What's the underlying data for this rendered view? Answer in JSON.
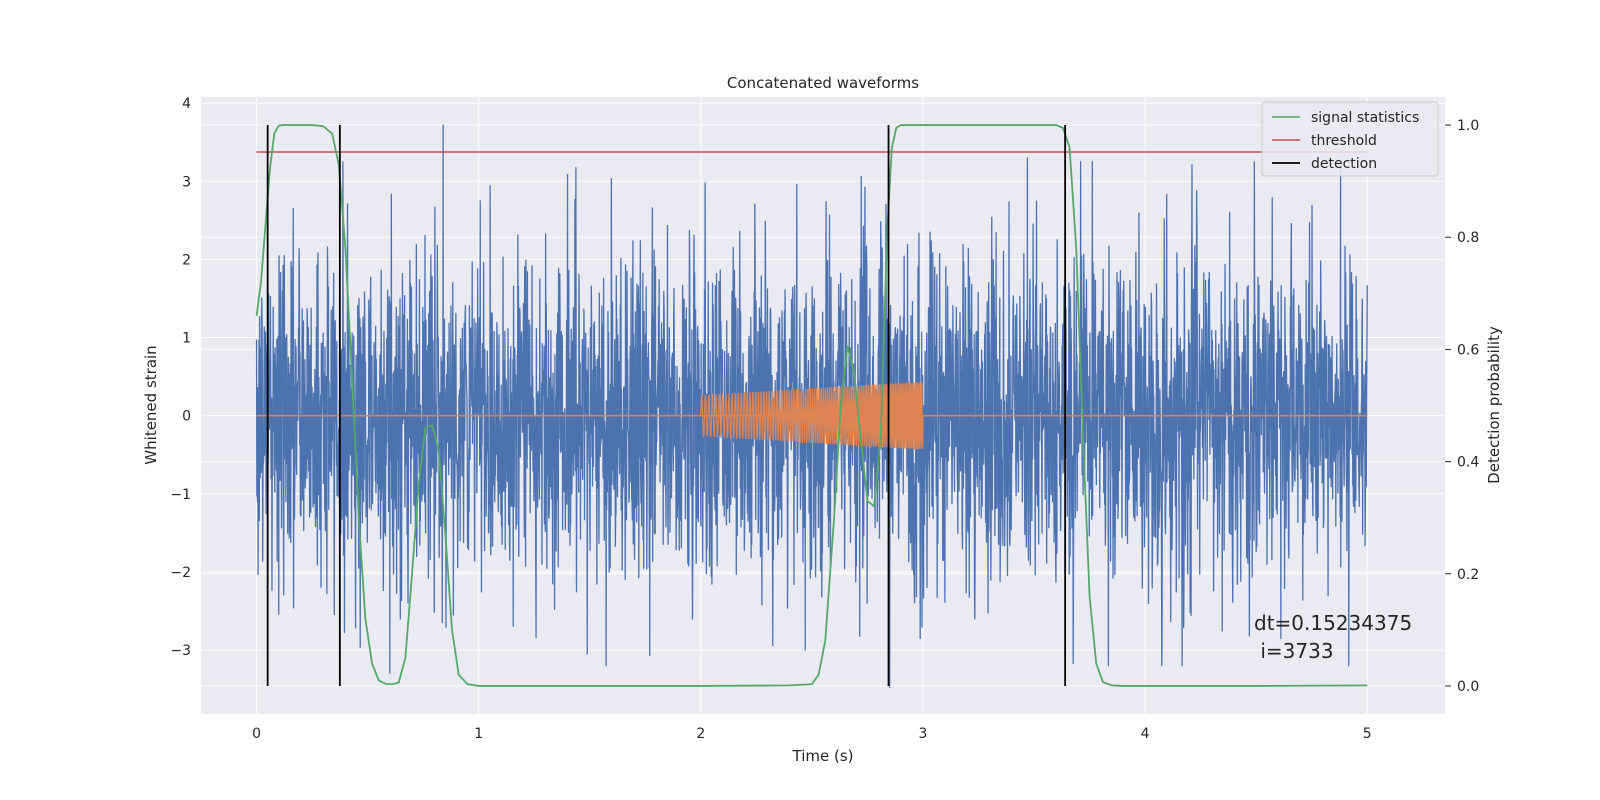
{
  "chart_data": {
    "type": "line",
    "title": "Concatenated waveforms",
    "xlabel": "Time (s)",
    "ylabel": "Whitened strain",
    "ylabel_right": "Detection probability",
    "xlim": [
      -0.25,
      5.35
    ],
    "ylim": [
      -3.82,
      4.08
    ],
    "ylim_right": [
      -0.05,
      1.05
    ],
    "xticks": [
      0,
      1,
      2,
      3,
      4,
      5
    ],
    "yticks": [
      -3,
      -2,
      -1,
      0,
      1,
      2,
      3,
      4
    ],
    "yticks_right": [
      0.0,
      0.2,
      0.4,
      0.6,
      0.8,
      1.0
    ],
    "yticks_right_labels": [
      "0.0",
      "0.2",
      "0.4",
      "0.6",
      "0.8",
      "1.0"
    ],
    "grid": true,
    "legend_position": "top-right",
    "colors": {
      "strain": "#4c72b0",
      "injection": "#dd8452",
      "signal": "#55a868",
      "threshold": "#c44e52",
      "detection": "#000000",
      "background": "#eaeaf2",
      "grid": "#ffffff"
    },
    "series": [
      {
        "name": "",
        "axis": "left",
        "kind": "noise",
        "x_range": [
          0,
          5
        ],
        "peak_positive": [
          [
            0.84,
            3.72
          ],
          [
            4.88,
            3.2
          ],
          [
            3.47,
            3.3
          ]
        ],
        "peak_negative": [
          [
            2.85,
            -3.48
          ],
          [
            0.6,
            -3.3
          ],
          [
            1.77,
            -3.07
          ],
          [
            2.47,
            -3.0
          ]
        ]
      },
      {
        "name": "",
        "axis": "left",
        "kind": "chirp",
        "baseline_x": [
          0,
          5
        ],
        "baseline_y": 0,
        "chirp_x_range": [
          2.0,
          3.0
        ],
        "chirp_amplitude_start": 0.26,
        "chirp_amplitude_end": 0.44
      },
      {
        "name": "signal statistics",
        "axis": "right",
        "x": [
          0.0,
          0.02,
          0.04,
          0.06,
          0.08,
          0.1,
          0.12,
          0.15,
          0.2,
          0.25,
          0.3,
          0.34,
          0.37,
          0.4,
          0.43,
          0.46,
          0.49,
          0.52,
          0.55,
          0.58,
          0.61,
          0.64,
          0.67,
          0.7,
          0.73,
          0.76,
          0.79,
          0.82,
          0.85,
          0.88,
          0.91,
          0.95,
          1.0,
          1.5,
          2.0,
          2.4,
          2.5,
          2.53,
          2.56,
          2.6,
          2.63,
          2.66,
          2.69,
          2.72,
          2.75,
          2.78,
          2.81,
          2.84,
          2.86,
          2.88,
          2.9,
          2.93,
          3.0,
          3.3,
          3.6,
          3.63,
          3.66,
          3.69,
          3.72,
          3.75,
          3.78,
          3.81,
          3.85,
          3.9,
          4.5,
          5.0
        ],
        "y": [
          0.66,
          0.72,
          0.82,
          0.92,
          0.985,
          0.999,
          1.0,
          1.0,
          1.0,
          1.0,
          0.998,
          0.985,
          0.93,
          0.78,
          0.55,
          0.3,
          0.12,
          0.04,
          0.01,
          0.004,
          0.003,
          0.006,
          0.05,
          0.2,
          0.36,
          0.46,
          0.465,
          0.42,
          0.27,
          0.1,
          0.02,
          0.003,
          0.0,
          0.0,
          0.0,
          0.001,
          0.003,
          0.02,
          0.08,
          0.3,
          0.5,
          0.605,
          0.56,
          0.44,
          0.33,
          0.32,
          0.45,
          0.82,
          0.96,
          0.995,
          1.0,
          1.0,
          1.0,
          1.0,
          1.0,
          0.995,
          0.96,
          0.78,
          0.45,
          0.16,
          0.04,
          0.007,
          0.001,
          0.0,
          0.0,
          0.001
        ]
      },
      {
        "name": "threshold",
        "axis": "right",
        "x": [
          0,
          5
        ],
        "y": [
          0.952,
          0.952
        ]
      }
    ],
    "detections": {
      "name": "detection",
      "axis": "right",
      "x": [
        0.05,
        0.375,
        2.845,
        3.64
      ],
      "ymin": 0.0,
      "ymax": 1.0
    },
    "legend": [
      {
        "label": "signal statistics",
        "color": "#55a868"
      },
      {
        "label": "threshold",
        "color": "#c44e52"
      },
      {
        "label": "detection",
        "color": "#000000"
      }
    ],
    "annotation": {
      "line1": "dt=0.15234375",
      "line2": " i=3733"
    }
  }
}
